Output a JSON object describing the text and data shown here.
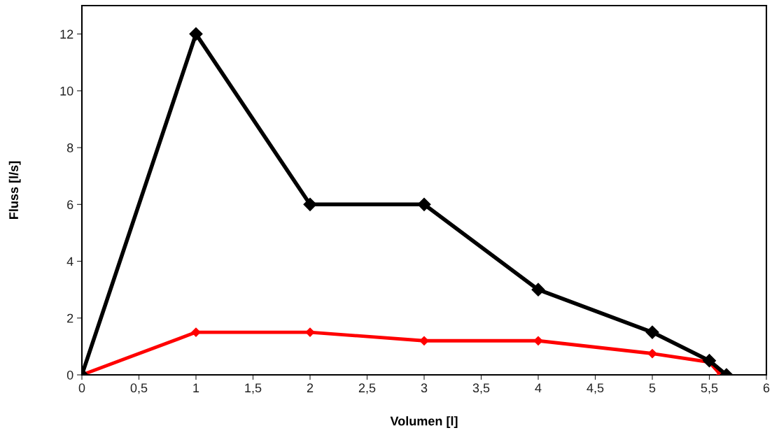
{
  "chart_data": {
    "type": "line",
    "xlabel": "Volumen [l]",
    "ylabel": "Fluss [l/s]",
    "series": [
      {
        "color": "#000000",
        "x": [
          0,
          1,
          2,
          3,
          4,
          5,
          5.5,
          5.65
        ],
        "values": [
          0,
          12,
          6,
          6,
          3,
          1.5,
          0.5,
          0
        ]
      },
      {
        "color": "#ff0000",
        "x": [
          0,
          1,
          2,
          3,
          4,
          5,
          5.5,
          5.6
        ],
        "values": [
          0,
          1.5,
          1.5,
          1.2,
          1.2,
          0.75,
          0.45,
          0
        ]
      }
    ],
    "xlim": [
      0,
      6
    ],
    "ylim": [
      0,
      13
    ],
    "xticks": [
      0,
      {
        "value": 0.5,
        "label": "0,5"
      },
      1,
      {
        "value": 1.5,
        "label": "1,5"
      },
      2,
      {
        "value": 2.5,
        "label": "2,5"
      },
      3,
      {
        "value": 3.5,
        "label": "3,5"
      },
      4,
      {
        "value": 4.5,
        "label": "4,5"
      },
      5,
      {
        "value": 5.5,
        "label": "5,5"
      },
      6
    ],
    "yticks": [
      0,
      2,
      4,
      6,
      8,
      10,
      12
    ],
    "marker": "diamond",
    "line_style": "solid",
    "grid": false
  }
}
